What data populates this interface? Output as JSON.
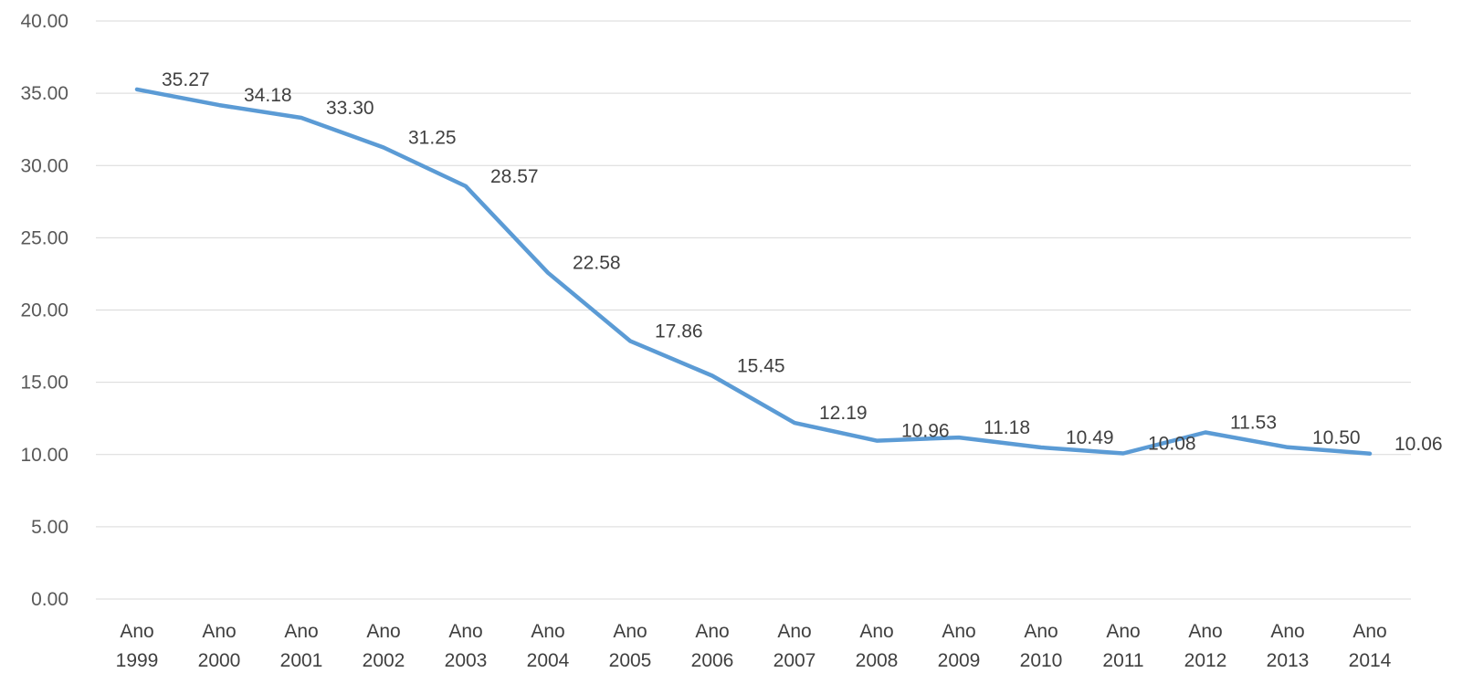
{
  "chart_data": {
    "type": "line",
    "title": "",
    "xlabel": "",
    "ylabel": "",
    "ylim": [
      0,
      40
    ],
    "y_tick_step": 5,
    "y_tick_decimals": 2,
    "grid": "horizontal",
    "legend": "none",
    "categories": [
      [
        "Ano",
        "1999"
      ],
      [
        "Ano",
        "2000"
      ],
      [
        "Ano",
        "2001"
      ],
      [
        "Ano",
        "2002"
      ],
      [
        "Ano",
        "2003"
      ],
      [
        "Ano",
        "2004"
      ],
      [
        "Ano",
        "2005"
      ],
      [
        "Ano",
        "2006"
      ],
      [
        "Ano",
        "2007"
      ],
      [
        "Ano",
        "2008"
      ],
      [
        "Ano",
        "2009"
      ],
      [
        "Ano",
        "2010"
      ],
      [
        "Ano",
        "2011"
      ],
      [
        "Ano",
        "2012"
      ],
      [
        "Ano",
        "2013"
      ],
      [
        "Ano",
        "2014"
      ]
    ],
    "series": [
      {
        "color": "#5b9bd5",
        "values": [
          35.27,
          34.18,
          33.3,
          31.25,
          28.57,
          22.58,
          17.86,
          15.45,
          12.19,
          10.96,
          11.18,
          10.49,
          10.08,
          11.53,
          10.5,
          10.06
        ],
        "labels": [
          "35.27",
          "34.18",
          "33.30",
          "31.25",
          "28.57",
          "22.58",
          "17.86",
          "15.45",
          "12.19",
          "10.96",
          "11.18",
          "10.49",
          "10.08",
          "11.53",
          "10.50",
          "10.06"
        ]
      }
    ]
  }
}
